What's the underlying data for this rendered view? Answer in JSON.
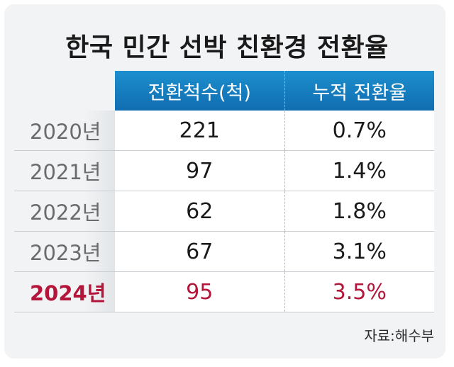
{
  "chart_data": {
    "type": "table",
    "title": "한국 민간 선박 친환경 전환율",
    "columns": [
      "전환척수(척)",
      "누적 전환율"
    ],
    "rows": [
      {
        "year": "2020년",
        "count": "221",
        "rate": "0.7%"
      },
      {
        "year": "2021년",
        "count": "97",
        "rate": "1.4%"
      },
      {
        "year": "2022년",
        "count": "62",
        "rate": "1.8%"
      },
      {
        "year": "2023년",
        "count": "67",
        "rate": "3.1%"
      },
      {
        "year": "2024년",
        "count": "95",
        "rate": "3.5%"
      }
    ],
    "highlight_row": "2024년",
    "source": "자료:해수부"
  },
  "colors": {
    "header": "#1378bd",
    "highlight": "#b3163a",
    "background": "#f2f3f4"
  }
}
